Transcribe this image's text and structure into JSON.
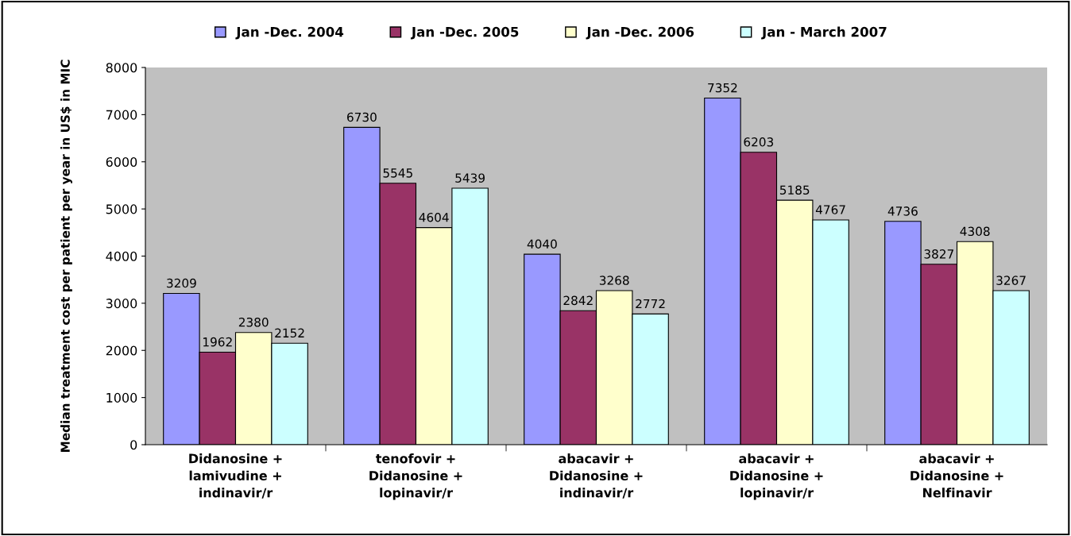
{
  "chart_data": {
    "type": "bar",
    "ylabel": "Median treatment cost per patient per year in US$ in MIC",
    "categories": [
      "Didanosine +\nlamivudine +\nindinavir/r",
      "tenofovir +\nDidanosine +\nlopinavir/r",
      "abacavir +\nDidanosine +\nindinavir/r",
      "abacavir +\nDidanosine +\nlopinavir/r",
      "abacavir +\nDidanosine +\nNelfinavir"
    ],
    "series": [
      {
        "name": "Jan -Dec. 2004",
        "color": "#9999ff",
        "values": [
          3209,
          6730,
          4040,
          7352,
          4736
        ]
      },
      {
        "name": "Jan -Dec. 2005",
        "color": "#993366",
        "values": [
          1962,
          5545,
          2842,
          6203,
          3827
        ]
      },
      {
        "name": "Jan -Dec. 2006",
        "color": "#ffffcc",
        "values": [
          2380,
          4604,
          3268,
          5185,
          4308
        ]
      },
      {
        "name": "Jan - March 2007",
        "color": "#ccffff",
        "values": [
          2152,
          5439,
          2772,
          4767,
          3267
        ]
      }
    ],
    "ylim": [
      0,
      8000
    ],
    "yticks": [
      0,
      1000,
      2000,
      3000,
      4000,
      5000,
      6000,
      7000,
      8000
    ],
    "data_labels": true,
    "grid": false,
    "legend": "top"
  }
}
